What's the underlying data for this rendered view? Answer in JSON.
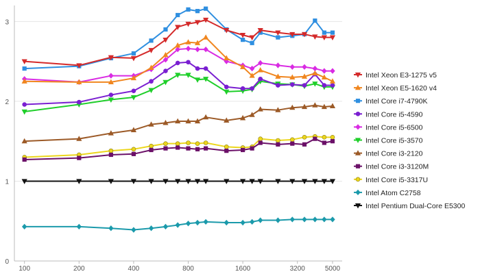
{
  "chart_data": {
    "type": "line",
    "xscale": "log",
    "x": [
      100,
      200,
      300,
      400,
      500,
      600,
      700,
      800,
      900,
      1000,
      1300,
      1600,
      1800,
      2000,
      2500,
      3000,
      3500,
      4000,
      4500,
      5000
    ],
    "xticks": [
      {
        "value": 100,
        "label": "100"
      },
      {
        "value": 200,
        "label": "200"
      },
      {
        "value": 400,
        "label": "400"
      },
      {
        "value": 800,
        "label": "800"
      },
      {
        "value": 1600,
        "label": "1600"
      },
      {
        "value": 3200,
        "label": "3200"
      },
      {
        "value": 5000,
        "label": "5000"
      }
    ],
    "ylim": [
      0,
      3.2
    ],
    "yticks": [
      {
        "value": 0,
        "label": "0"
      },
      {
        "value": 1,
        "label": "1"
      },
      {
        "value": 2,
        "label": "2"
      },
      {
        "value": 3,
        "label": "3"
      }
    ],
    "grid": "horizontal",
    "legend_position": "right",
    "series": [
      {
        "name": "Intel Xeon E3-1275 v5",
        "color": "#d42a2a",
        "marker": "triangle-down",
        "values": [
          2.5,
          2.45,
          2.55,
          2.54,
          2.64,
          2.77,
          2.93,
          2.97,
          2.99,
          3.02,
          2.89,
          2.83,
          2.8,
          2.89,
          2.86,
          2.84,
          2.84,
          2.81,
          2.8,
          2.8
        ]
      },
      {
        "name": "Intel Xeon E5-1620 v4",
        "color": "#f0861f",
        "marker": "triangle-up",
        "values": [
          2.25,
          2.24,
          2.24,
          2.29,
          2.42,
          2.58,
          2.7,
          2.74,
          2.73,
          2.8,
          2.54,
          2.43,
          2.32,
          2.39,
          2.31,
          2.3,
          2.31,
          2.35,
          2.3,
          2.25
        ]
      },
      {
        "name": "Intel Core i7-4790K",
        "color": "#2f8fe0",
        "marker": "square",
        "values": [
          2.41,
          2.44,
          2.54,
          2.6,
          2.76,
          2.9,
          3.08,
          3.15,
          3.13,
          3.16,
          2.9,
          2.77,
          2.73,
          2.86,
          2.8,
          2.82,
          2.84,
          3.01,
          2.86,
          2.86
        ]
      },
      {
        "name": "Intel Core i5-4590",
        "color": "#7a1fd1",
        "marker": "circle",
        "values": [
          1.96,
          1.99,
          2.08,
          2.13,
          2.25,
          2.38,
          2.48,
          2.49,
          2.41,
          2.41,
          2.18,
          2.16,
          2.16,
          2.28,
          2.2,
          2.21,
          2.2,
          2.34,
          2.2,
          2.2
        ]
      },
      {
        "name": "Intel Core i5-6500",
        "color": "#d92be3",
        "marker": "diamond",
        "values": [
          2.28,
          2.24,
          2.32,
          2.32,
          2.4,
          2.52,
          2.65,
          2.66,
          2.65,
          2.65,
          2.5,
          2.45,
          2.41,
          2.48,
          2.45,
          2.43,
          2.43,
          2.41,
          2.38,
          2.38
        ]
      },
      {
        "name": "Intel Core i5-3570",
        "color": "#1fcf2a",
        "marker": "triangle-down",
        "values": [
          1.87,
          1.96,
          2.02,
          2.05,
          2.14,
          2.24,
          2.33,
          2.33,
          2.27,
          2.28,
          2.12,
          2.13,
          2.15,
          2.25,
          2.22,
          2.21,
          2.19,
          2.22,
          2.18,
          2.18
        ]
      },
      {
        "name": "Intel Core i3-2120",
        "color": "#9c5a27",
        "marker": "triangle-up",
        "values": [
          1.5,
          1.53,
          1.6,
          1.64,
          1.71,
          1.73,
          1.75,
          1.75,
          1.75,
          1.8,
          1.76,
          1.79,
          1.83,
          1.9,
          1.89,
          1.92,
          1.93,
          1.95,
          1.93,
          1.94
        ]
      },
      {
        "name": "Intel Core i3-3120M",
        "color": "#6b1068",
        "marker": "square",
        "values": [
          1.27,
          1.29,
          1.33,
          1.34,
          1.39,
          1.41,
          1.42,
          1.41,
          1.4,
          1.41,
          1.38,
          1.39,
          1.41,
          1.48,
          1.46,
          1.47,
          1.46,
          1.53,
          1.48,
          1.5
        ]
      },
      {
        "name": "Intel Core i5-3317U",
        "color": "#ecd61c",
        "marker": "circle",
        "values": [
          1.3,
          1.33,
          1.38,
          1.4,
          1.44,
          1.47,
          1.47,
          1.48,
          1.47,
          1.48,
          1.43,
          1.42,
          1.43,
          1.53,
          1.51,
          1.52,
          1.55,
          1.56,
          1.55,
          1.55
        ]
      },
      {
        "name": "Intel Atom C2758",
        "color": "#1b9aab",
        "marker": "diamond",
        "values": [
          0.43,
          0.43,
          0.41,
          0.39,
          0.41,
          0.43,
          0.45,
          0.47,
          0.48,
          0.49,
          0.48,
          0.48,
          0.49,
          0.51,
          0.51,
          0.52,
          0.52,
          0.52,
          0.52,
          0.52
        ]
      },
      {
        "name": "Intel Pentium Dual-Core E5300",
        "color": "#111111",
        "marker": "triangle-down",
        "values": [
          1.0,
          1.0,
          1.0,
          1.0,
          1.0,
          1.0,
          1.0,
          1.0,
          1.0,
          1.0,
          1.0,
          1.0,
          1.0,
          1.0,
          1.0,
          1.0,
          1.0,
          1.0,
          1.0,
          1.0
        ]
      }
    ]
  }
}
